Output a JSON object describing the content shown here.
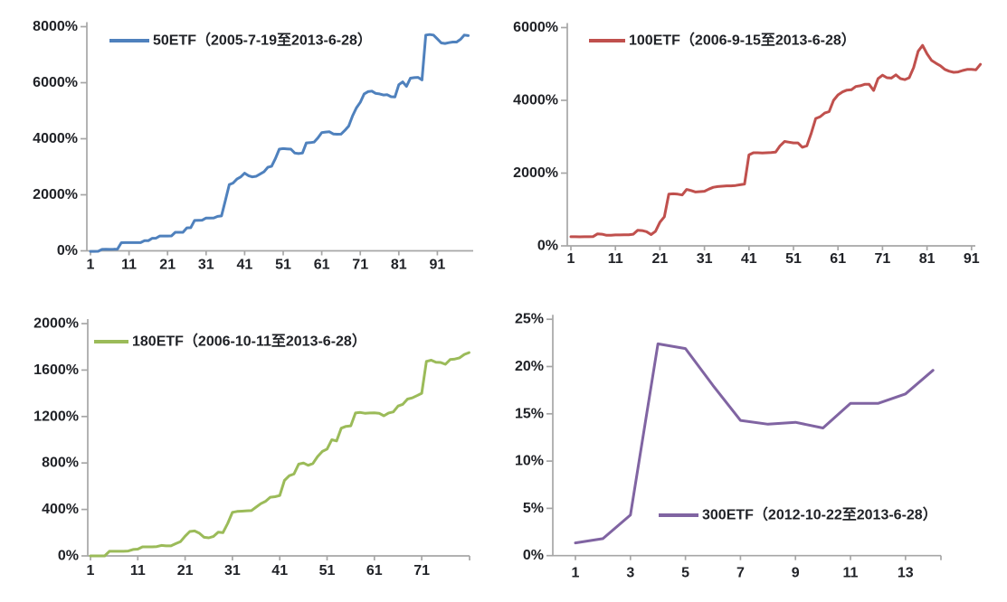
{
  "page": {
    "background": "#ffffff",
    "description": "Four line charts of ETF cumulative returns (%), arranged in a 2x2 grid"
  },
  "colors": {
    "axis": "#a6a6a6",
    "label_text": "#1f2126",
    "blue": "#4F81BD",
    "red": "#C0504D",
    "green": "#9BBB59",
    "purple": "#8064A2"
  },
  "chart_data": [
    {
      "id": "50etf",
      "type": "line",
      "series_name": "50ETF",
      "legend": "50ETF（2005-7-19至2013-6-28）",
      "date_start": "2005-7-19",
      "date_end": "2013-6-28",
      "color": "#4F81BD",
      "legend_position": "top-center",
      "grid": false,
      "x_ticks": [
        1,
        11,
        21,
        31,
        41,
        51,
        61,
        71,
        81,
        91
      ],
      "y_ticks": [
        "0%",
        "2000%",
        "4000%",
        "6000%",
        "8000%"
      ],
      "y_axis": {
        "min": 0,
        "max": 8000,
        "tick_step": 2000,
        "unit": "%"
      },
      "x_start": 1,
      "values": [
        -20,
        -20,
        -15,
        50,
        55,
        50,
        55,
        60,
        290,
        293,
        293,
        295,
        293,
        295,
        360,
        362,
        450,
        452,
        530,
        530,
        528,
        532,
        660,
        662,
        660,
        820,
        825,
        1085,
        1090,
        1092,
        1170,
        1172,
        1175,
        1230,
        1245,
        1800,
        2360,
        2420,
        2560,
        2640,
        2770,
        2680,
        2640,
        2660,
        2740,
        2820,
        2980,
        3020,
        3300,
        3630,
        3650,
        3640,
        3630,
        3490,
        3470,
        3490,
        3850,
        3860,
        3880,
        4030,
        4220,
        4240,
        4250,
        4170,
        4160,
        4165,
        4300,
        4450,
        4820,
        5100,
        5300,
        5600,
        5680,
        5700,
        5620,
        5600,
        5560,
        5570,
        5500,
        5490,
        5930,
        6030,
        5870,
        6160,
        6180,
        6190,
        6100,
        7700,
        7720,
        7700,
        7560,
        7420,
        7400,
        7430,
        7450,
        7450,
        7550,
        7700,
        7680
      ]
    },
    {
      "id": "100etf",
      "type": "line",
      "series_name": "100ETF",
      "legend": "100ETF（2006-9-15至2013-6-28）",
      "date_start": "2006-9-15",
      "date_end": "2013-6-28",
      "color": "#C0504D",
      "legend_position": "top-center",
      "grid": false,
      "x_ticks": [
        1,
        11,
        21,
        31,
        41,
        51,
        61,
        71,
        81,
        91
      ],
      "y_ticks": [
        "0%",
        "2000%",
        "4000%",
        "6000%"
      ],
      "y_axis": {
        "min": 0,
        "max": 6000,
        "tick_step": 2000,
        "unit": "%"
      },
      "x_start": 1,
      "values": [
        250,
        250,
        248,
        250,
        252,
        255,
        330,
        320,
        290,
        292,
        300,
        300,
        302,
        305,
        320,
        430,
        420,
        390,
        310,
        400,
        650,
        800,
        1420,
        1430,
        1420,
        1400,
        1550,
        1520,
        1480,
        1490,
        1500,
        1560,
        1610,
        1630,
        1640,
        1650,
        1650,
        1660,
        1680,
        1700,
        2500,
        2560,
        2560,
        2555,
        2560,
        2565,
        2580,
        2750,
        2870,
        2850,
        2830,
        2830,
        2710,
        2750,
        3100,
        3500,
        3550,
        3650,
        3690,
        4000,
        4150,
        4230,
        4280,
        4290,
        4380,
        4400,
        4440,
        4440,
        4270,
        4600,
        4690,
        4620,
        4610,
        4700,
        4600,
        4570,
        4620,
        4900,
        5350,
        5510,
        5280,
        5100,
        5020,
        4950,
        4850,
        4800,
        4770,
        4780,
        4820,
        4850,
        4850,
        4840,
        4990
      ]
    },
    {
      "id": "180etf",
      "type": "line",
      "series_name": "180ETF",
      "legend": "180ETF（2006-10-11至2013-6-28）",
      "date_start": "2006-10-11",
      "date_end": "2013-6-28",
      "color": "#9BBB59",
      "legend_position": "top-center",
      "grid": false,
      "x_ticks": [
        1,
        11,
        21,
        31,
        41,
        51,
        61,
        71
      ],
      "y_ticks": [
        "0%",
        "400%",
        "800%",
        "1200%",
        "1600%",
        "2000%"
      ],
      "y_axis": {
        "min": 0,
        "max": 2000,
        "tick_step": 400,
        "unit": "%"
      },
      "x_start": 1,
      "values": [
        0,
        0,
        0,
        0,
        40,
        40,
        40,
        40,
        42,
        55,
        58,
        78,
        78,
        78,
        80,
        90,
        86,
        86,
        105,
        122,
        170,
        210,
        215,
        195,
        160,
        156,
        168,
        205,
        200,
        280,
        375,
        383,
        385,
        388,
        390,
        420,
        450,
        470,
        505,
        510,
        520,
        650,
        690,
        705,
        790,
        800,
        780,
        795,
        855,
        900,
        920,
        1000,
        990,
        1100,
        1115,
        1120,
        1230,
        1235,
        1228,
        1230,
        1232,
        1228,
        1206,
        1230,
        1240,
        1290,
        1305,
        1350,
        1360,
        1380,
        1400,
        1675,
        1685,
        1668,
        1665,
        1650,
        1690,
        1695,
        1705,
        1735,
        1750
      ]
    },
    {
      "id": "300etf",
      "type": "line",
      "series_name": "300ETF",
      "legend": "300ETF（2012-10-22至2013-6-28）",
      "date_start": "2012-10-22",
      "date_end": "2013-6-28",
      "color": "#8064A2",
      "legend_position": "inside-bottom-center",
      "grid": false,
      "x_ticks": [
        1,
        3,
        5,
        7,
        9,
        11,
        13
      ],
      "y_ticks": [
        "0%",
        "5%",
        "10%",
        "15%",
        "20%",
        "25%"
      ],
      "y_axis": {
        "min": 0,
        "max": 25,
        "tick_step": 5,
        "unit": "%"
      },
      "x_start": 1,
      "values": [
        1.35,
        1.8,
        4.3,
        22.4,
        21.9,
        18.0,
        14.3,
        13.9,
        14.1,
        13.5,
        16.1,
        16.1,
        17.1,
        19.6
      ]
    }
  ]
}
